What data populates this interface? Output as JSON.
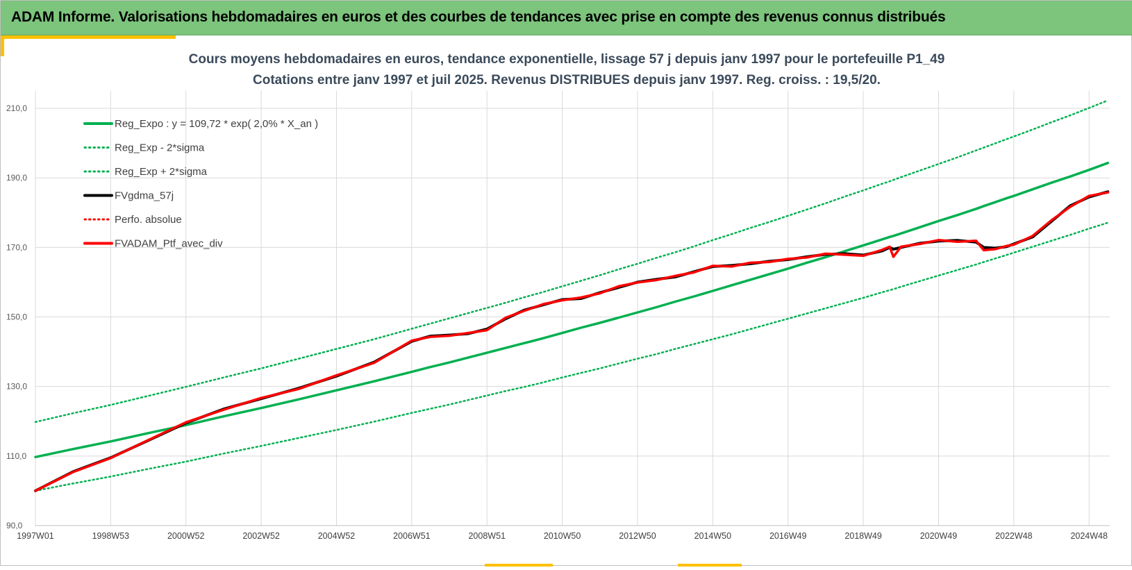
{
  "header": {
    "title": "ADAM Informe. Valorisations hebdomadaires en euros et des courbes de tendances avec prise en compte des revenus connus distribués"
  },
  "colors": {
    "header_bg": "#7dc47d",
    "accent": "#ffc000",
    "trend": "#00b050",
    "trend_band": "#00b050",
    "smoothed": "#000000",
    "portfolio": "#ff0000",
    "grid": "#d9d9d9",
    "title": "#3b4a5a"
  },
  "chart_data": {
    "type": "line",
    "title": "Cours moyens hebdomadaires  en euros, tendance exponentielle, lissage 57 j depuis janv 1997 pour le portefeuille P1_49",
    "subtitle": "Cotations  entre janv 1997 et juil 2025. Revenus DISTRIBUES depuis janv 1997. Reg. croiss. : 19,5/20.",
    "xlabel": "",
    "ylabel": "",
    "xlim": [
      1997.0,
      2025.55
    ],
    "ylim": [
      90,
      215
    ],
    "y_ticks": [
      90,
      110,
      130,
      150,
      170,
      190,
      210
    ],
    "y_tick_labels": [
      "90,0",
      "110,0",
      "130,0",
      "150,0",
      "170,0",
      "190,0",
      "210,0"
    ],
    "x_ticks": [
      1997.0,
      1999.0,
      2001.0,
      2003.0,
      2005.0,
      2007.0,
      2009.0,
      2011.0,
      2013.0,
      2015.0,
      2017.0,
      2019.0,
      2021.0,
      2023.0,
      2025.0
    ],
    "x_tick_labels": [
      "1997W01",
      "1998W53",
      "2000W52",
      "2002W52",
      "2004W52",
      "2006W51",
      "2008W51",
      "2010W50",
      "2012W50",
      "2014W50",
      "2016W49",
      "2018W49",
      "2020W49",
      "2022W48",
      "2024W48"
    ],
    "grid": true,
    "legend_position": "top-left",
    "legend": [
      {
        "label": "Reg_Expo : y = 109,72 * exp( 2,0% *  X_an )",
        "color": "#00b050",
        "style": "solid"
      },
      {
        "label": "Reg_Exp - 2*sigma",
        "color": "#00b050",
        "style": "dotted"
      },
      {
        "label": "Reg_Exp + 2*sigma",
        "color": "#00b050",
        "style": "dotted"
      },
      {
        "label": "FVgdma_57j",
        "color": "#000000",
        "style": "solid"
      },
      {
        "label": "Perfo. absolue",
        "color": "#ff0000",
        "style": "dotted"
      },
      {
        "label": "FVADAM_Ptf_avec_div",
        "color": "#ff0000",
        "style": "solid"
      }
    ],
    "x": [
      1997.0,
      1998.0,
      1999.0,
      2000.0,
      2001.0,
      2002.0,
      2003.0,
      2004.0,
      2005.0,
      2006.0,
      2007.0,
      2007.5,
      2008.0,
      2008.5,
      2009.0,
      2009.5,
      2010.0,
      2010.5,
      2011.0,
      2011.5,
      2012.0,
      2012.5,
      2013.0,
      2013.5,
      2014.0,
      2014.5,
      2015.0,
      2015.5,
      2016.0,
      2016.5,
      2017.0,
      2017.5,
      2018.0,
      2018.5,
      2019.0,
      2019.5,
      2019.7,
      2019.8,
      2020.0,
      2020.5,
      2021.0,
      2021.5,
      2022.0,
      2022.2,
      2022.5,
      2022.8,
      2023.0,
      2023.5,
      2024.0,
      2024.5,
      2025.0,
      2025.5
    ],
    "series": [
      {
        "name": "Reg_Expo : y = 109,72 * exp( 2,0% *  X_an )",
        "values": [
          109.7,
          112.0,
          114.2,
          116.6,
          118.9,
          121.4,
          123.8,
          126.3,
          128.9,
          131.5,
          134.2,
          135.6,
          136.9,
          138.3,
          139.7,
          141.1,
          142.5,
          143.9,
          145.4,
          146.9,
          148.3,
          149.8,
          151.3,
          152.8,
          154.4,
          155.9,
          157.5,
          159.1,
          160.7,
          162.3,
          163.9,
          165.6,
          167.2,
          168.9,
          170.6,
          172.3,
          173.0,
          173.3,
          174.0,
          175.8,
          177.6,
          179.3,
          181.1,
          181.9,
          183.0,
          184.1,
          184.8,
          186.7,
          188.6,
          190.4,
          192.3,
          194.3
        ]
      },
      {
        "name": "Reg_Exp - 2*sigma",
        "values": [
          100.0,
          102.1,
          104.1,
          106.3,
          108.4,
          110.7,
          112.9,
          115.2,
          117.5,
          119.9,
          122.4,
          123.6,
          124.8,
          126.1,
          127.4,
          128.7,
          129.9,
          131.2,
          132.6,
          133.9,
          135.2,
          136.6,
          138.0,
          139.3,
          140.8,
          142.2,
          143.6,
          145.0,
          146.5,
          148.0,
          149.5,
          151.0,
          152.5,
          154.0,
          155.5,
          157.1,
          157.7,
          158.0,
          158.7,
          160.3,
          161.9,
          163.5,
          165.1,
          165.8,
          166.8,
          167.8,
          168.5,
          170.2,
          171.9,
          173.6,
          175.4,
          177.1
        ]
      },
      {
        "name": "Reg_Exp + 2*sigma",
        "values": [
          119.8,
          122.3,
          124.7,
          127.3,
          129.9,
          132.6,
          135.2,
          138.0,
          140.8,
          143.6,
          146.6,
          148.1,
          149.6,
          151.1,
          152.6,
          154.1,
          155.7,
          157.2,
          158.8,
          160.4,
          162.0,
          163.7,
          165.3,
          167.0,
          168.6,
          170.3,
          172.1,
          173.8,
          175.6,
          177.3,
          179.1,
          180.9,
          182.7,
          184.6,
          186.4,
          188.3,
          189.0,
          189.4,
          190.2,
          192.1,
          194.0,
          195.9,
          197.9,
          198.7,
          199.9,
          201.1,
          201.9,
          203.9,
          206.0,
          208.0,
          210.1,
          212.3
        ]
      },
      {
        "name": "FVgdma_57j",
        "values": [
          100.0,
          105.5,
          109.5,
          114.5,
          119.5,
          123.5,
          126.5,
          129.5,
          133.0,
          137.0,
          143.0,
          144.5,
          144.8,
          145.2,
          146.5,
          149.5,
          152.0,
          153.5,
          155.0,
          155.3,
          157.0,
          158.5,
          160.0,
          160.8,
          161.5,
          163.0,
          164.5,
          164.8,
          165.3,
          166.0,
          166.5,
          167.3,
          168.0,
          168.2,
          167.8,
          169.0,
          170.0,
          169.5,
          170.0,
          171.2,
          171.8,
          172.0,
          171.5,
          170.0,
          169.8,
          170.2,
          171.0,
          173.0,
          177.5,
          182.0,
          184.5,
          186.0
        ]
      },
      {
        "name": "FVADAM_Ptf_avec_div",
        "values": [
          100.0,
          105.4,
          109.4,
          114.6,
          119.7,
          123.3,
          126.7,
          129.3,
          133.2,
          136.8,
          143.2,
          144.3,
          144.6,
          145.4,
          146.2,
          149.8,
          151.8,
          153.7,
          154.8,
          155.6,
          156.8,
          158.8,
          159.9,
          160.6,
          161.8,
          162.8,
          164.7,
          164.5,
          165.6,
          165.8,
          166.7,
          167.1,
          168.2,
          167.9,
          167.6,
          169.3,
          170.2,
          167.3,
          170.2,
          171.0,
          172.1,
          171.6,
          171.9,
          169.2,
          169.5,
          170.4,
          170.8,
          173.3,
          177.8,
          181.7,
          184.8,
          185.8
        ]
      }
    ]
  }
}
